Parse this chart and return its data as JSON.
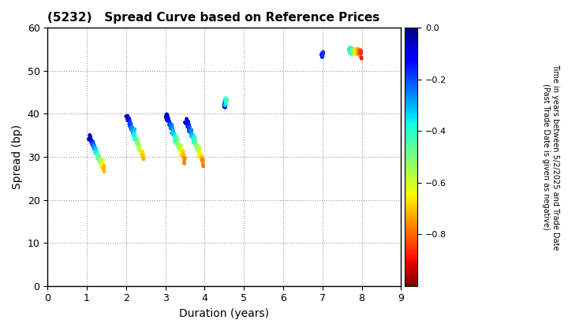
{
  "title": "(5232)   Spread Curve based on Reference Prices",
  "xlabel": "Duration (years)",
  "ylabel": "Spread (bp)",
  "xlim": [
    0,
    9
  ],
  "ylim": [
    0,
    60
  ],
  "xticks": [
    0,
    1,
    2,
    3,
    4,
    5,
    6,
    7,
    8,
    9
  ],
  "yticks": [
    0,
    10,
    20,
    30,
    40,
    50,
    60
  ],
  "colorbar_label_line1": "Time in years between 5/2/2025 and Trade Date",
  "colorbar_label_line2": "(Past Trade Date is given as negative)",
  "cmap": "jet_r",
  "vmin": -1.0,
  "vmax": 0.0,
  "colorbar_ticks": [
    0.0,
    -0.2,
    -0.4,
    -0.6,
    -0.8
  ],
  "background_color": "#ffffff",
  "marker_size": 12
}
